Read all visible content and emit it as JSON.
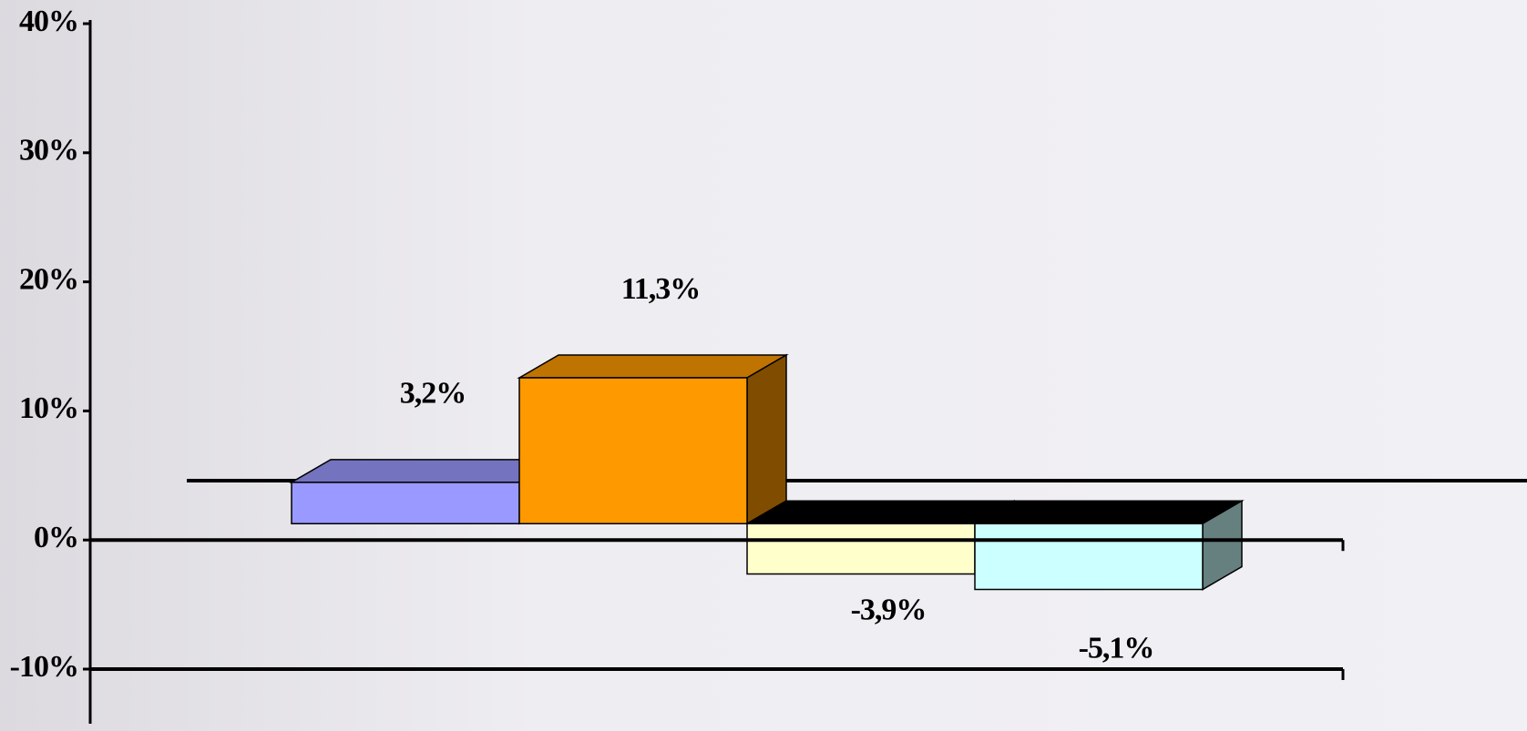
{
  "chart_data": {
    "type": "bar3d",
    "categories": [
      null,
      null,
      null,
      null
    ],
    "values": [
      3.2,
      11.3,
      -3.9,
      -5.1
    ],
    "value_labels": [
      "3,2%",
      "11,3%",
      "-3,9%",
      "-5,1%"
    ],
    "colors": [
      "#9999ff",
      "#ff9900",
      "#ffffcc",
      "#ccffff"
    ],
    "ylim": [
      -10,
      40
    ],
    "yticks": [
      {
        "value": -10,
        "label": "-10%"
      },
      {
        "value": 0,
        "label": "0%"
      },
      {
        "value": 10,
        "label": "10%"
      },
      {
        "value": 20,
        "label": "20%"
      },
      {
        "value": 30,
        "label": "30%"
      },
      {
        "value": 40,
        "label": "40%"
      }
    ]
  }
}
